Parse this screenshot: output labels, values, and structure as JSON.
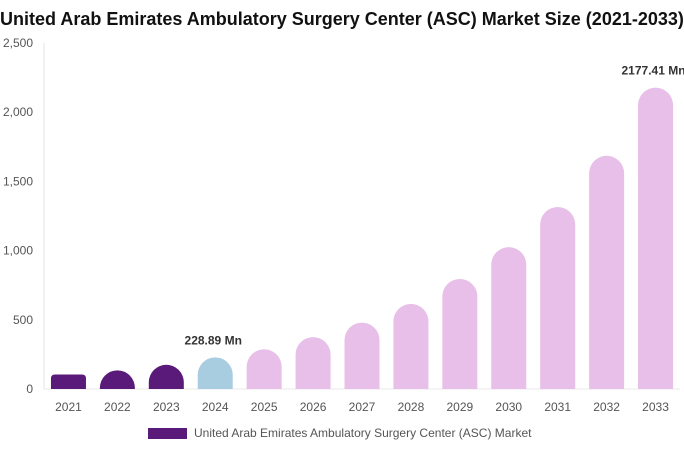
{
  "chart_data": {
    "type": "bar",
    "title": "United Arab Emirates Ambulatory Surgery Center (ASC) Market Size (2021-2033)",
    "categories": [
      "2021",
      "2022",
      "2023",
      "2024",
      "2025",
      "2026",
      "2027",
      "2028",
      "2029",
      "2030",
      "2031",
      "2032",
      "2033"
    ],
    "series": [
      {
        "name": "United Arab Emirates Ambulatory Surgery Center (ASC) Market",
        "values": [
          105,
          135,
          175,
          228.89,
          287,
          375,
          480,
          615,
          795,
          1025,
          1315,
          1685,
          2177.41
        ]
      }
    ],
    "bar_colors": [
      "#5a1a7a",
      "#5a1a7a",
      "#5a1a7a",
      "#a8cce0",
      "#e8bfe8",
      "#e8bfe8",
      "#e8bfe8",
      "#e8bfe8",
      "#e8bfe8",
      "#e8bfe8",
      "#e8bfe8",
      "#e8bfe8",
      "#e8bfe8"
    ],
    "data_labels": [
      {
        "index": 3,
        "text": "228.89 Mn"
      },
      {
        "index": 12,
        "text": "2177.41 Mn"
      }
    ],
    "yticks": [
      0,
      500,
      1000,
      1500,
      2000,
      2500
    ],
    "ytick_labels": [
      "0",
      "500",
      "1,000",
      "1,500",
      "2,000",
      "2,500"
    ],
    "ylim": [
      0,
      2500
    ],
    "legend": {
      "placement": "bottom",
      "label": "United Arab Emirates Ambulatory Surgery Center (ASC) Market",
      "color": "#5a1a7a"
    }
  }
}
